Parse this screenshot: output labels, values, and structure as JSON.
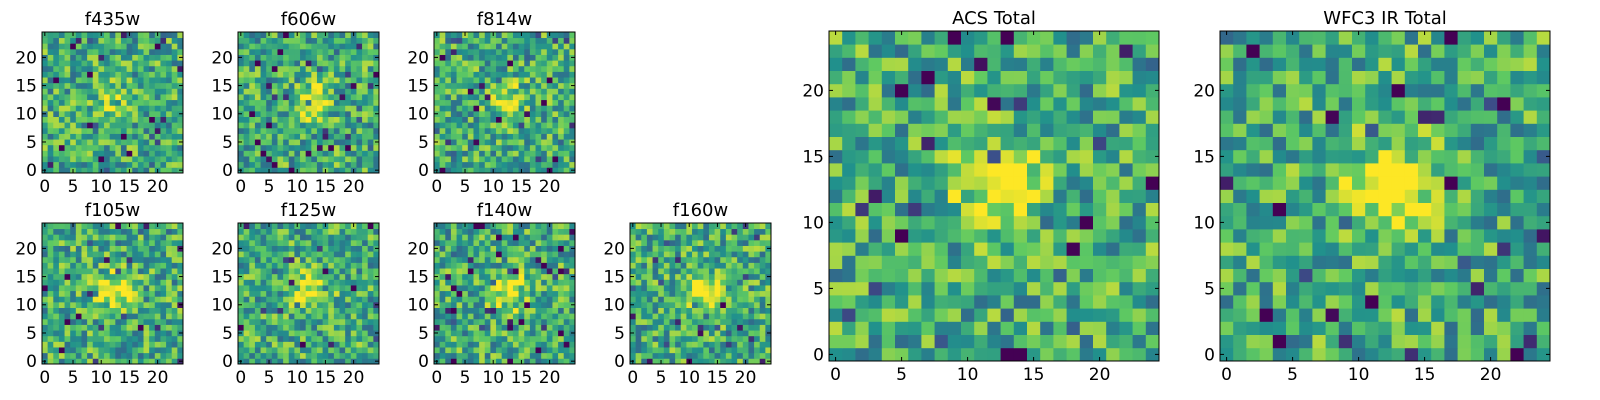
{
  "figure": {
    "background": "#ffffff",
    "colormap": "viridis",
    "colormap_stops": [
      "#440154",
      "#3b528b",
      "#21918c",
      "#5ec962",
      "#fde725"
    ]
  },
  "chart_data": [
    {
      "type": "heatmap",
      "title": "f435w",
      "grid_size": 25,
      "source_center": [
        12.5,
        12.5
      ],
      "x_ticks": [
        "0",
        "5",
        "10",
        "15",
        "20"
      ],
      "y_ticks": [
        "0",
        "5",
        "10",
        "15",
        "20"
      ],
      "value_range": [
        0,
        1
      ],
      "peak_strength": 0.2,
      "seed": 11
    },
    {
      "type": "heatmap",
      "title": "f606w",
      "grid_size": 25,
      "source_center": [
        12.5,
        12.5
      ],
      "x_ticks": [
        "0",
        "5",
        "10",
        "15",
        "20"
      ],
      "y_ticks": [
        "0",
        "5",
        "10",
        "15",
        "20"
      ],
      "value_range": [
        0,
        1
      ],
      "peak_strength": 0.35,
      "seed": 23
    },
    {
      "type": "heatmap",
      "title": "f814w",
      "grid_size": 25,
      "source_center": [
        12.5,
        12.5
      ],
      "x_ticks": [
        "0",
        "5",
        "10",
        "15",
        "20"
      ],
      "y_ticks": [
        "0",
        "5",
        "10",
        "15",
        "20"
      ],
      "value_range": [
        0,
        1
      ],
      "peak_strength": 0.3,
      "seed": 37
    },
    {
      "type": "heatmap",
      "title": "f105w",
      "grid_size": 25,
      "source_center": [
        12.5,
        12.5
      ],
      "x_ticks": [
        "0",
        "5",
        "10",
        "15",
        "20"
      ],
      "y_ticks": [
        "0",
        "5",
        "10",
        "15",
        "20"
      ],
      "value_range": [
        0,
        1
      ],
      "peak_strength": 0.4,
      "seed": 41
    },
    {
      "type": "heatmap",
      "title": "f125w",
      "grid_size": 25,
      "source_center": [
        12.5,
        12.5
      ],
      "x_ticks": [
        "0",
        "5",
        "10",
        "15",
        "20"
      ],
      "y_ticks": [
        "0",
        "5",
        "10",
        "15",
        "20"
      ],
      "value_range": [
        0,
        1
      ],
      "peak_strength": 0.4,
      "seed": 53
    },
    {
      "type": "heatmap",
      "title": "f140w",
      "grid_size": 25,
      "source_center": [
        12.5,
        12.5
      ],
      "x_ticks": [
        "0",
        "5",
        "10",
        "15",
        "20"
      ],
      "y_ticks": [
        "0",
        "5",
        "10",
        "15",
        "20"
      ],
      "value_range": [
        0,
        1
      ],
      "peak_strength": 0.4,
      "seed": 67
    },
    {
      "type": "heatmap",
      "title": "f160w",
      "grid_size": 25,
      "source_center": [
        12.5,
        12.5
      ],
      "x_ticks": [
        "0",
        "5",
        "10",
        "15",
        "20"
      ],
      "y_ticks": [
        "0",
        "5",
        "10",
        "15",
        "20"
      ],
      "value_range": [
        0,
        1
      ],
      "peak_strength": 0.45,
      "seed": 79
    },
    {
      "type": "heatmap",
      "title": "ACS Total",
      "grid_size": 25,
      "source_center": [
        12.5,
        12.5
      ],
      "x_ticks": [
        "0",
        "5",
        "10",
        "15",
        "20"
      ],
      "y_ticks": [
        "0",
        "5",
        "10",
        "15",
        "20"
      ],
      "value_range": [
        0,
        1
      ],
      "peak_strength": 0.45,
      "seed": 97
    },
    {
      "type": "heatmap",
      "title": "WFC3 IR Total",
      "grid_size": 25,
      "source_center": [
        12.5,
        12.5
      ],
      "x_ticks": [
        "0",
        "5",
        "10",
        "15",
        "20"
      ],
      "y_ticks": [
        "0",
        "5",
        "10",
        "15",
        "20"
      ],
      "value_range": [
        0,
        1
      ],
      "peak_strength": 0.55,
      "seed": 131
    }
  ]
}
